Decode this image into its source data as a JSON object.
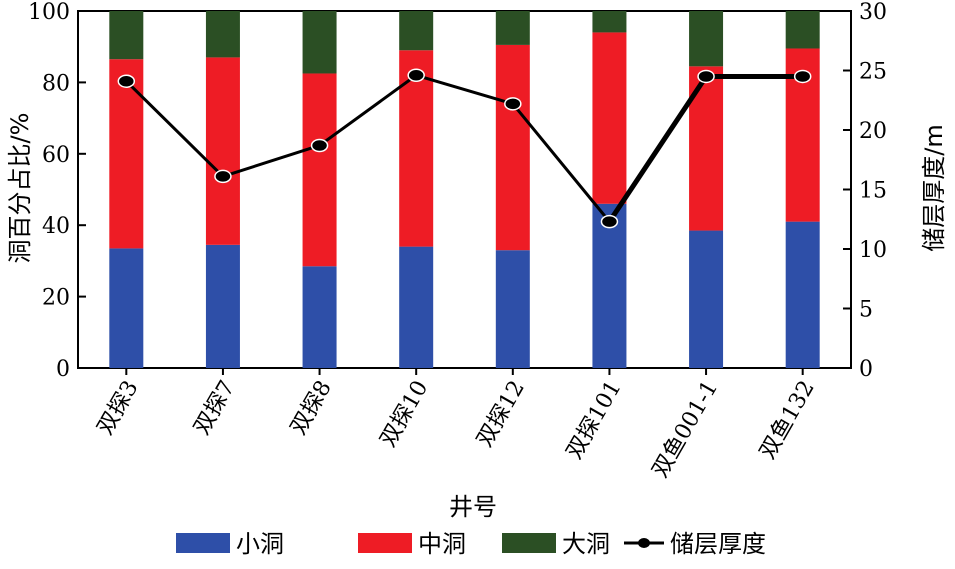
{
  "chart_data": {
    "type": "bar",
    "stacked": true,
    "xlabel": "井号",
    "ylabel": "洞百分占比/%",
    "y2label": "储层厚度/m",
    "ylim": [
      0,
      100
    ],
    "y2lim": [
      0,
      30
    ],
    "yticks": [
      "0",
      "20",
      "40",
      "60",
      "80",
      "100"
    ],
    "y2ticks": [
      "0",
      "5",
      "10",
      "15",
      "20",
      "25",
      "30"
    ],
    "categories": [
      "双探3",
      "双探7",
      "双探8",
      "双探10",
      "双探12",
      "双探101",
      "双鱼001-1",
      "双鱼132"
    ],
    "series": [
      {
        "name": "小洞",
        "kind": "bar",
        "color": "#2e4fa8",
        "values": [
          33.5,
          34.5,
          28.5,
          34,
          33,
          46,
          38.5,
          41
        ]
      },
      {
        "name": "中洞",
        "kind": "bar",
        "color": "#ee1c25",
        "values": [
          53,
          52.5,
          54,
          55,
          57.5,
          48,
          46,
          48.5
        ]
      },
      {
        "name": "大洞",
        "kind": "bar",
        "color": "#2b4f24",
        "values": [
          13.5,
          13,
          17.5,
          11,
          9.5,
          6,
          15.5,
          10.5
        ]
      },
      {
        "name": "储层厚度",
        "kind": "line",
        "axis": "right",
        "color": "#000000",
        "values": [
          24.1,
          16.1,
          18.7,
          24.6,
          22.2,
          12.3,
          24.5,
          24.5
        ]
      }
    ],
    "legend_position": "bottom",
    "grid": false
  }
}
